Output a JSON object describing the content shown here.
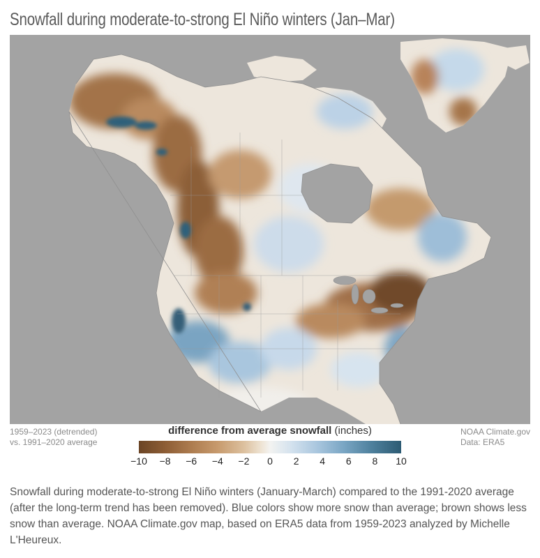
{
  "title": "Snowfall during moderate-to-strong El Niño winters (Jan–Mar)",
  "footer": {
    "left_line1": "1959–2023 (detrended)",
    "left_line2": "vs. 1991–2020 average",
    "right_line1": "NOAA Climate.gov",
    "right_line2": "Data: ERA5"
  },
  "legend": {
    "title_bold": "difference from average snowfall",
    "title_unit": " (inches)",
    "ticks": [
      "−10",
      "−8",
      "−6",
      "−4",
      "−2",
      "0",
      "2",
      "4",
      "6",
      "8",
      "10"
    ],
    "colors": {
      "less": "#6b4526",
      "neutral": "#f3f3f1",
      "more": "#2d5b73",
      "ocean": "#a3a3a3"
    }
  },
  "caption": "Snowfall during moderate-to-strong El Niño winters (January-March) compared to the 1991-2020 average (after the long-term trend has been removed). Blue colors show more snow than average; brown shows less snow than average. NOAA Climate.gov map, based on ERA5 data from 1959-2023 analyzed by Michelle L'Heureux."
}
